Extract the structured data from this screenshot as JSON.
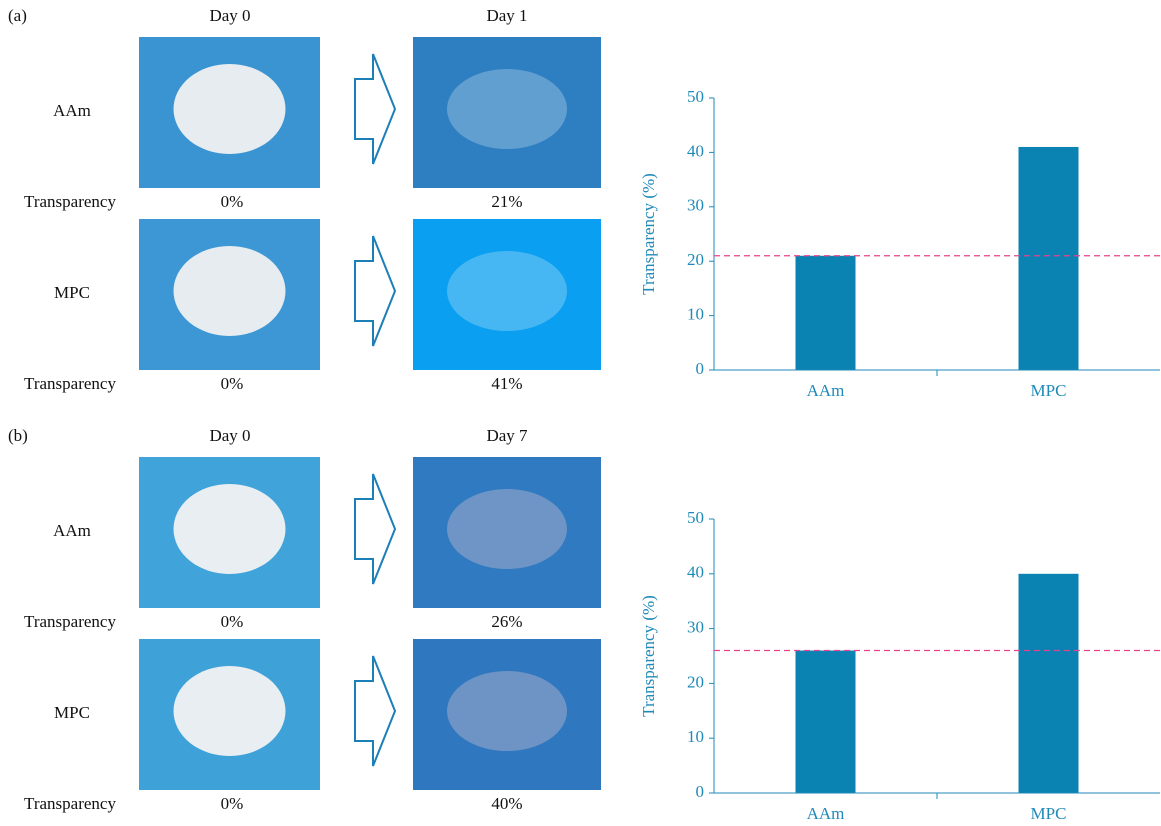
{
  "panels": [
    {
      "label": "(a)",
      "before_day": "Day 0",
      "after_day": "Day 1",
      "rows": [
        {
          "name": "AAm",
          "measure": "Transparency",
          "before": "0%",
          "after": "21%"
        },
        {
          "name": "MPC",
          "measure": "Transparency",
          "before": "0%",
          "after": "41%"
        }
      ]
    },
    {
      "label": "(b)",
      "before_day": "Day 0",
      "after_day": "Day 7",
      "rows": [
        {
          "name": "AAm",
          "measure": "Transparency",
          "before": "0%",
          "after": "26%"
        },
        {
          "name": "MPC",
          "measure": "Transparency",
          "before": "0%",
          "after": "40%"
        }
      ]
    }
  ],
  "chart_data": [
    {
      "type": "bar",
      "y_label": "Transparency (%)",
      "categories": [
        "AAm",
        "MPC"
      ],
      "values": [
        21,
        41
      ],
      "color": "#0a82b2",
      "ylim": [
        0,
        50
      ],
      "yticks": [
        0,
        10,
        20,
        30,
        40,
        50
      ],
      "reference_line": {
        "value": 21,
        "color": "#e8428a"
      }
    },
    {
      "type": "bar",
      "y_label": "Transparency (%)",
      "categories": [
        "AAm",
        "MPC"
      ],
      "values": [
        26,
        40
      ],
      "color": "#0a82b2",
      "ylim": [
        0,
        50
      ],
      "yticks": [
        0,
        10,
        20,
        30,
        40,
        50
      ],
      "reference_line": {
        "value": 26,
        "color": "#e8428a"
      }
    }
  ]
}
